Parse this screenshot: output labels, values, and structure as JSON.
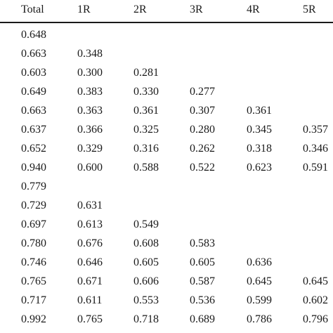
{
  "table": {
    "headers": [
      "Total",
      "1R",
      "2R",
      "3R",
      "4R",
      "5R"
    ],
    "rows": [
      [
        "0.648",
        "",
        "",
        "",
        "",
        ""
      ],
      [
        "0.663",
        "0.348",
        "",
        "",
        "",
        ""
      ],
      [
        "0.603",
        "0.300",
        "0.281",
        "",
        "",
        ""
      ],
      [
        "0.649",
        "0.383",
        "0.330",
        "0.277",
        "",
        ""
      ],
      [
        "0.663",
        "0.363",
        "0.361",
        "0.307",
        "0.361",
        ""
      ],
      [
        "0.637",
        "0.366",
        "0.325",
        "0.280",
        "0.345",
        "0.357"
      ],
      [
        "0.652",
        "0.329",
        "0.316",
        "0.262",
        "0.318",
        "0.346"
      ],
      [
        "0.940",
        "0.600",
        "0.588",
        "0.522",
        "0.623",
        "0.591"
      ],
      [
        "0.779",
        "",
        "",
        "",
        "",
        ""
      ],
      [
        "0.729",
        "0.631",
        "",
        "",
        "",
        ""
      ],
      [
        "0.697",
        "0.613",
        "0.549",
        "",
        "",
        ""
      ],
      [
        "0.780",
        "0.676",
        "0.608",
        "0.583",
        "",
        ""
      ],
      [
        "0.746",
        "0.646",
        "0.605",
        "0.605",
        "0.636",
        ""
      ],
      [
        "0.765",
        "0.671",
        "0.606",
        "0.587",
        "0.645",
        "0.645"
      ],
      [
        "0.717",
        "0.611",
        "0.553",
        "0.536",
        "0.599",
        "0.602"
      ],
      [
        "0.992",
        "0.765",
        "0.718",
        "0.689",
        "0.786",
        "0.796"
      ]
    ]
  }
}
